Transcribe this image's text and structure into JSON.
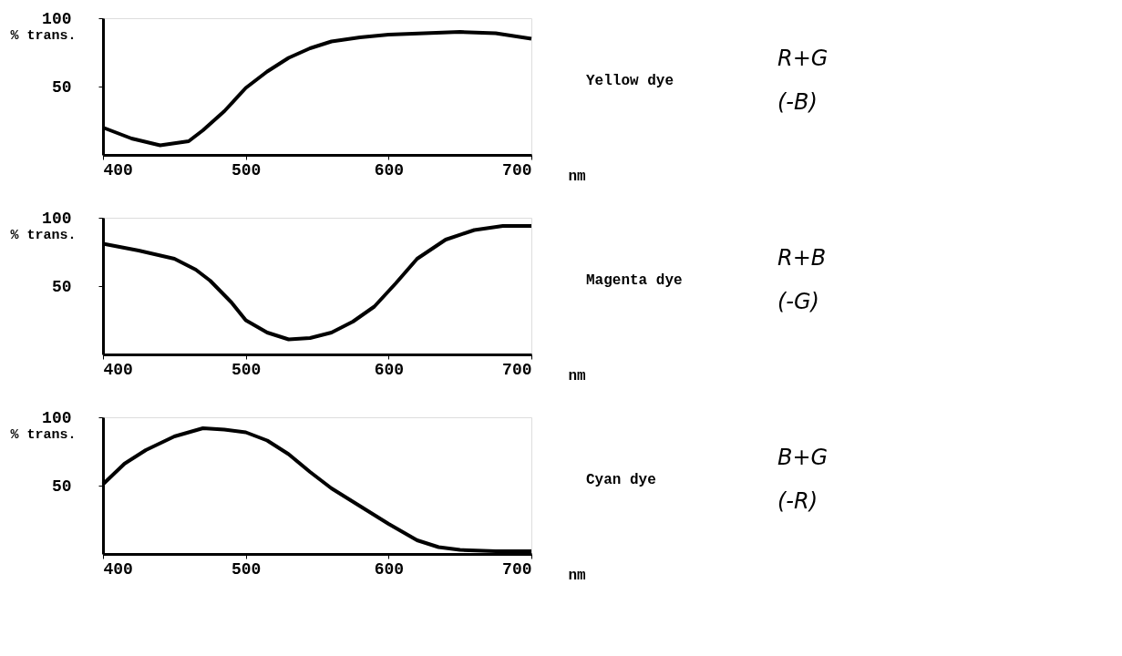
{
  "chart_data": [
    {
      "type": "line",
      "ylabel": "% trans.",
      "xlabel": "nm",
      "x": [
        400,
        420,
        440,
        460,
        470,
        485,
        500,
        515,
        530,
        545,
        560,
        580,
        600,
        625,
        650,
        675,
        700
      ],
      "series": [
        {
          "color": "#000000",
          "values": [
            20,
            12,
            7,
            10,
            18,
            32,
            49,
            61,
            71,
            78,
            83,
            86,
            88,
            89,
            90,
            89,
            85
          ]
        }
      ],
      "xlim": [
        400,
        700
      ],
      "xticks": [
        400,
        500,
        600,
        700
      ],
      "ylim": [
        0,
        100
      ],
      "yticks": [
        50,
        100
      ],
      "grid": false,
      "annotations": [
        "Yellow dye",
        "R+G",
        "(-B)"
      ]
    },
    {
      "type": "line",
      "ylabel": "% trans.",
      "xlabel": "nm",
      "x": [
        400,
        425,
        450,
        465,
        475,
        490,
        500,
        515,
        530,
        545,
        560,
        575,
        590,
        605,
        620,
        640,
        660,
        680,
        700
      ],
      "series": [
        {
          "color": "#000000",
          "values": [
            81,
            76,
            70,
            62,
            54,
            38,
            25,
            16,
            11,
            12,
            16,
            24,
            35,
            52,
            70,
            84,
            91,
            94,
            94
          ]
        }
      ],
      "xlim": [
        400,
        700
      ],
      "xticks": [
        400,
        500,
        600,
        700
      ],
      "ylim": [
        0,
        100
      ],
      "yticks": [
        50,
        100
      ],
      "grid": false,
      "annotations": [
        "Magenta dye",
        "R+B",
        "(-G)"
      ]
    },
    {
      "type": "line",
      "ylabel": "% trans.",
      "xlabel": "nm",
      "x": [
        400,
        415,
        430,
        450,
        470,
        485,
        500,
        515,
        530,
        545,
        560,
        580,
        600,
        620,
        635,
        650,
        675,
        700
      ],
      "series": [
        {
          "color": "#000000",
          "values": [
            51,
            66,
            76,
            86,
            92,
            91,
            89,
            83,
            73,
            60,
            48,
            35,
            22,
            10,
            5,
            3,
            2,
            2
          ]
        }
      ],
      "xlim": [
        400,
        700
      ],
      "xticks": [
        400,
        500,
        600,
        700
      ],
      "ylim": [
        0,
        100
      ],
      "yticks": [
        50,
        100
      ],
      "grid": false,
      "annotations": [
        "Cyan dye",
        "B+G",
        "(-R)"
      ]
    }
  ]
}
